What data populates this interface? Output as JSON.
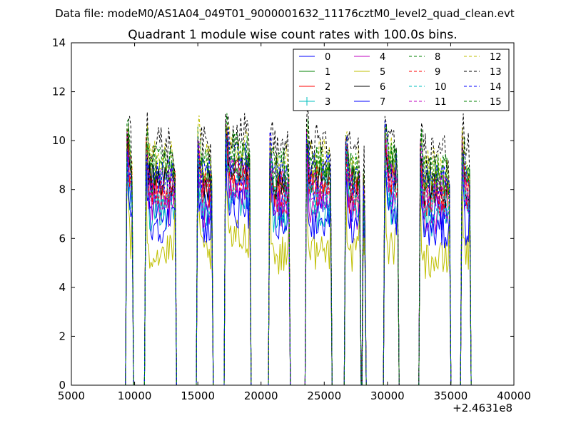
{
  "chart_data": {
    "type": "line",
    "suptitle": "Data file: modeM0/AS1A04_049T01_9000001632_11176cztM0_level2_quad_clean.evt",
    "title": "Quadrant 1 module wise count rates with 100.0s bins.",
    "xlabel": "",
    "ylabel": "",
    "x_offset_label": "+2.4631e8",
    "xlim": [
      5000,
      40000
    ],
    "ylim": [
      0,
      14
    ],
    "xticks": [
      5000,
      10000,
      15000,
      20000,
      25000,
      30000,
      35000,
      40000
    ],
    "xtick_labels": [
      "5000",
      "10000",
      "15000",
      "20000",
      "25000",
      "30000",
      "35000",
      "40000"
    ],
    "yticks": [
      0,
      2,
      4,
      6,
      8,
      10,
      12,
      14
    ],
    "ytick_labels": [
      "0",
      "2",
      "4",
      "6",
      "8",
      "10",
      "12",
      "14"
    ],
    "legend_position": "top-right",
    "legend_columns": 4,
    "observation_windows": [
      {
        "start": 9400,
        "end": 9800,
        "level": 8.2
      },
      {
        "start": 10900,
        "end": 13200,
        "level": 8.0
      },
      {
        "start": 15000,
        "end": 16100,
        "level": 8.0
      },
      {
        "start": 17200,
        "end": 19100,
        "level": 8.6
      },
      {
        "start": 20700,
        "end": 22200,
        "level": 7.9
      },
      {
        "start": 23600,
        "end": 25500,
        "level": 8.1
      },
      {
        "start": 26700,
        "end": 27800,
        "level": 7.9
      },
      {
        "start": 28100,
        "end": 28200,
        "level": 6.2
      },
      {
        "start": 29800,
        "end": 30800,
        "level": 8.3
      },
      {
        "start": 32600,
        "end": 34900,
        "level": 7.7
      },
      {
        "start": 35900,
        "end": 36500,
        "level": 7.9
      }
    ],
    "series": [
      {
        "name": "0",
        "style": "solid",
        "color": "#0000ff",
        "offset": -0.6
      },
      {
        "name": "1",
        "style": "solid",
        "color": "#008000",
        "offset": 0.5
      },
      {
        "name": "2",
        "style": "solid",
        "color": "#ff0000",
        "offset": -0.1
      },
      {
        "name": "3",
        "style": "solid-plus",
        "color": "#00bfbf",
        "offset": -1.0
      },
      {
        "name": "4",
        "style": "solid",
        "color": "#bf00bf",
        "offset": -0.8
      },
      {
        "name": "5",
        "style": "solid",
        "color": "#bfbf00",
        "offset": -2.6
      },
      {
        "name": "6",
        "style": "solid",
        "color": "#000000",
        "offset": 0.3
      },
      {
        "name": "7",
        "style": "solid",
        "color": "#0000ff",
        "offset": -1.4
      },
      {
        "name": "8",
        "style": "dashed",
        "color": "#008000",
        "offset": 0.9
      },
      {
        "name": "9",
        "style": "dashed",
        "color": "#ff0000",
        "offset": 0.1
      },
      {
        "name": "10",
        "style": "dashed",
        "color": "#00bfbf",
        "offset": -0.4
      },
      {
        "name": "11",
        "style": "dashed",
        "color": "#bf00bf",
        "offset": 0.2
      },
      {
        "name": "12",
        "style": "dashed",
        "color": "#bfbf00",
        "offset": 1.2
      },
      {
        "name": "13",
        "style": "dashed",
        "color": "#000000",
        "offset": 1.8
      },
      {
        "name": "14",
        "style": "dashed",
        "color": "#0000ff",
        "offset": 0.6
      },
      {
        "name": "15",
        "style": "dashed",
        "color": "#008000",
        "offset": 1.0
      }
    ]
  }
}
